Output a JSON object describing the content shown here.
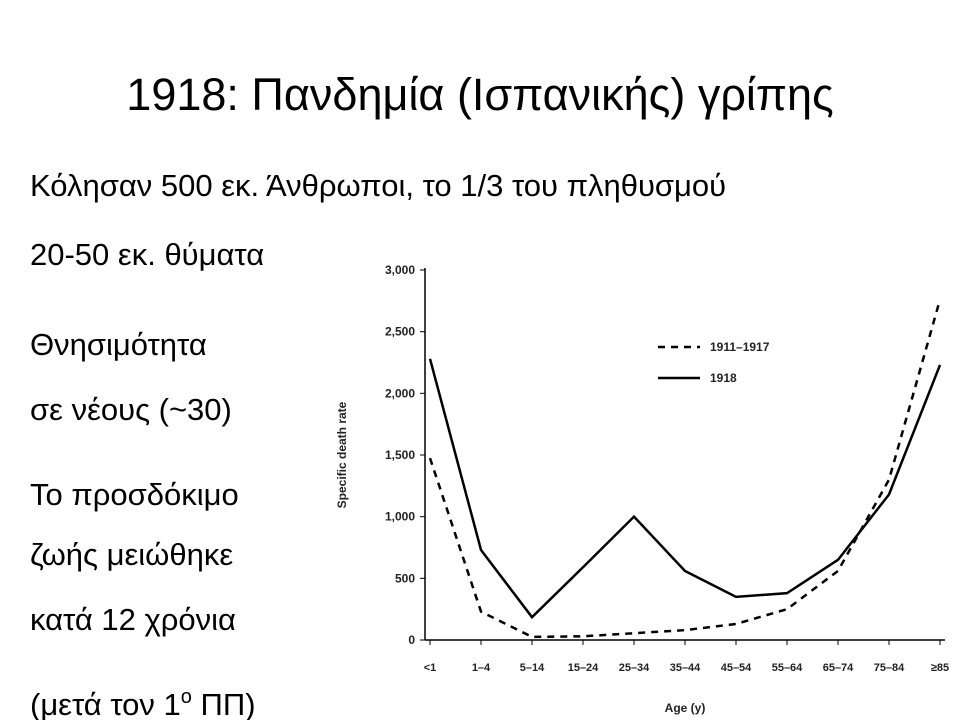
{
  "slide": {
    "title": "1918: Πανδημία (Ισπανικής) γρίπης",
    "subtitle": "Κόλησαν 500 εκ. Άνθρωποι, το 1/3 του πληθυσμού",
    "lines": [
      "20-50 εκ. θύματα",
      "Θνησιμότητα",
      "σε νέους (~30)",
      "Το προσδόκιμο",
      "ζωής μειώθηκε",
      "κατά 12 χρόνια"
    ],
    "last_line": [
      "(μετά τον 1",
      "ο",
      " ΠΠ)"
    ]
  },
  "chart_data": {
    "type": "line",
    "xlabel": "Age (y)",
    "ylabel": "Specific death rate",
    "categories": [
      "<1",
      "1–4",
      "5–14",
      "15–24",
      "25–34",
      "35–44",
      "45–54",
      "55–64",
      "65–74",
      "75–84",
      "≥85"
    ],
    "series": [
      {
        "name": "1911–1917",
        "color": "#000000",
        "dashed": true,
        "values": [
          1475,
          230,
          25,
          30,
          55,
          80,
          130,
          250,
          560,
          1300,
          2760
        ]
      },
      {
        "name": "1918",
        "color": "#000000",
        "dashed": false,
        "values": [
          2280,
          730,
          185,
          590,
          1000,
          560,
          350,
          380,
          650,
          1180,
          2230
        ]
      }
    ],
    "ylim": [
      0,
      3000
    ],
    "yticks": [
      0,
      500,
      {
        "value": 1000,
        "label": "1,000"
      },
      {
        "value": 1500,
        "label": "1,500"
      },
      {
        "value": 2000,
        "label": "2,000"
      },
      {
        "value": 2500,
        "label": "2,500"
      },
      {
        "value": 3000,
        "label": "3,000"
      }
    ],
    "grid": false,
    "legend": "upper right"
  }
}
